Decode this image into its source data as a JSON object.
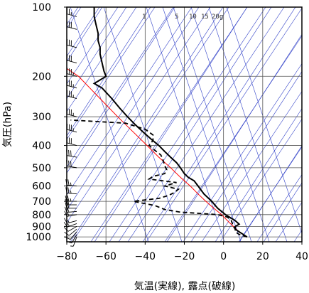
{
  "chart_data": {
    "type": "line",
    "xlabel": "気温(実線), 露点(破線)",
    "ylabel": "気圧(hPa)",
    "xlim": [
      -80,
      40
    ],
    "ylim": [
      1050,
      100
    ],
    "y_scale": "log",
    "x_ticks": [
      -80,
      -60,
      -40,
      -20,
      0,
      20,
      40
    ],
    "y_ticks": [
      100,
      200,
      300,
      400,
      500,
      600,
      700,
      800,
      900,
      1000
    ],
    "mixing_ratio_labels": [
      "1",
      "5",
      "10",
      "15",
      "20g"
    ],
    "colors": {
      "temperature": "#000000",
      "dewpoint": "#000000",
      "parcel": "#ff0000",
      "background_lines": "#3040c8",
      "grid": "#555555"
    },
    "series": [
      {
        "role": "temperature",
        "style": "solid",
        "points": [
          {
            "p": 1000,
            "t": 12
          },
          {
            "p": 975,
            "t": 10
          },
          {
            "p": 950,
            "t": 8
          },
          {
            "p": 925,
            "t": 6
          },
          {
            "p": 900,
            "t": 6
          },
          {
            "p": 880,
            "t": 8
          },
          {
            "p": 850,
            "t": 6
          },
          {
            "p": 800,
            "t": 1
          },
          {
            "p": 750,
            "t": -3
          },
          {
            "p": 700,
            "t": -6
          },
          {
            "p": 650,
            "t": -10
          },
          {
            "p": 600,
            "t": -13
          },
          {
            "p": 570,
            "t": -15
          },
          {
            "p": 550,
            "t": -18
          },
          {
            "p": 530,
            "t": -20
          },
          {
            "p": 500,
            "t": -22
          },
          {
            "p": 475,
            "t": -24
          },
          {
            "p": 450,
            "t": -27
          },
          {
            "p": 425,
            "t": -30
          },
          {
            "p": 400,
            "t": -33
          },
          {
            "p": 375,
            "t": -37
          },
          {
            "p": 350,
            "t": -41
          },
          {
            "p": 325,
            "t": -45
          },
          {
            "p": 300,
            "t": -49
          },
          {
            "p": 275,
            "t": -53
          },
          {
            "p": 250,
            "t": -57
          },
          {
            "p": 225,
            "t": -62
          },
          {
            "p": 215,
            "t": -66
          },
          {
            "p": 210,
            "t": -64
          },
          {
            "p": 200,
            "t": -60
          },
          {
            "p": 190,
            "t": -61
          },
          {
            "p": 175,
            "t": -62
          },
          {
            "p": 160,
            "t": -63
          },
          {
            "p": 150,
            "t": -63
          },
          {
            "p": 140,
            "t": -64
          },
          {
            "p": 130,
            "t": -64
          },
          {
            "p": 120,
            "t": -65
          },
          {
            "p": 110,
            "t": -66
          },
          {
            "p": 100,
            "t": -66
          }
        ]
      },
      {
        "role": "dewpoint",
        "style": "dashed",
        "points": [
          {
            "p": 1000,
            "t": 12
          },
          {
            "p": 975,
            "t": 8
          },
          {
            "p": 950,
            "t": 6
          },
          {
            "p": 925,
            "t": 6
          },
          {
            "p": 900,
            "t": 5
          },
          {
            "p": 850,
            "t": 4
          },
          {
            "p": 820,
            "t": 2
          },
          {
            "p": 800,
            "t": -3
          },
          {
            "p": 790,
            "t": -12
          },
          {
            "p": 780,
            "t": -22
          },
          {
            "p": 760,
            "t": -30
          },
          {
            "p": 730,
            "t": -35
          },
          {
            "p": 700,
            "t": -46
          },
          {
            "p": 690,
            "t": -40
          },
          {
            "p": 680,
            "t": -33
          },
          {
            "p": 660,
            "t": -28
          },
          {
            "p": 640,
            "t": -25
          },
          {
            "p": 620,
            "t": -23
          },
          {
            "p": 600,
            "t": -30
          },
          {
            "p": 580,
            "t": -24
          },
          {
            "p": 560,
            "t": -38
          },
          {
            "p": 545,
            "t": -36
          },
          {
            "p": 530,
            "t": -30
          },
          {
            "p": 510,
            "t": -29
          },
          {
            "p": 490,
            "t": -30
          },
          {
            "p": 460,
            "t": -31
          },
          {
            "p": 440,
            "t": -32
          },
          {
            "p": 420,
            "t": -35
          },
          {
            "p": 400,
            "t": -38
          },
          {
            "p": 380,
            "t": -36
          },
          {
            "p": 360,
            "t": -36
          },
          {
            "p": 340,
            "t": -40
          },
          {
            "p": 320,
            "t": -50
          },
          {
            "p": 310,
            "t": -78
          }
        ]
      },
      {
        "role": "parcel",
        "style": "solid",
        "points": [
          {
            "p": 1000,
            "t": 12
          },
          {
            "p": 950,
            "t": 8
          },
          {
            "p": 900,
            "t": 5
          },
          {
            "p": 850,
            "t": 2
          },
          {
            "p": 800,
            "t": -1
          },
          {
            "p": 750,
            "t": -5
          },
          {
            "p": 700,
            "t": -9
          },
          {
            "p": 650,
            "t": -13
          },
          {
            "p": 600,
            "t": -17
          },
          {
            "p": 550,
            "t": -22
          },
          {
            "p": 500,
            "t": -27
          },
          {
            "p": 450,
            "t": -33
          },
          {
            "p": 400,
            "t": -39
          },
          {
            "p": 350,
            "t": -46
          },
          {
            "p": 300,
            "t": -54
          },
          {
            "p": 250,
            "t": -63
          },
          {
            "p": 200,
            "t": -74
          },
          {
            "p": 185,
            "t": -80
          }
        ]
      }
    ],
    "wind_barbs": [
      {
        "p": 1000,
        "dir": 200,
        "speed": 5
      },
      {
        "p": 975,
        "dir": 210,
        "speed": 5
      },
      {
        "p": 950,
        "dir": 220,
        "speed": 10
      },
      {
        "p": 925,
        "dir": 230,
        "speed": 10
      },
      {
        "p": 900,
        "dir": 240,
        "speed": 10
      },
      {
        "p": 875,
        "dir": 250,
        "speed": 15
      },
      {
        "p": 850,
        "dir": 255,
        "speed": 15
      },
      {
        "p": 800,
        "dir": 260,
        "speed": 15
      },
      {
        "p": 775,
        "dir": 265,
        "speed": 20
      },
      {
        "p": 750,
        "dir": 270,
        "speed": 20
      },
      {
        "p": 725,
        "dir": 270,
        "speed": 20
      },
      {
        "p": 700,
        "dir": 270,
        "speed": 25
      },
      {
        "p": 650,
        "dir": 275,
        "speed": 25
      },
      {
        "p": 600,
        "dir": 275,
        "speed": 25
      },
      {
        "p": 500,
        "dir": 280,
        "speed": 30
      },
      {
        "p": 450,
        "dir": 280,
        "speed": 30
      },
      {
        "p": 400,
        "dir": 285,
        "speed": 30
      },
      {
        "p": 350,
        "dir": 285,
        "speed": 35
      },
      {
        "p": 300,
        "dir": 285,
        "speed": 35
      },
      {
        "p": 250,
        "dir": 285,
        "speed": 35
      },
      {
        "p": 225,
        "dir": 285,
        "speed": 35
      },
      {
        "p": 200,
        "dir": 285,
        "speed": 35
      },
      {
        "p": 175,
        "dir": 285,
        "speed": 30
      },
      {
        "p": 150,
        "dir": 285,
        "speed": 30
      },
      {
        "p": 125,
        "dir": 285,
        "speed": 30
      },
      {
        "p": 110,
        "dir": 285,
        "speed": 25
      }
    ]
  }
}
